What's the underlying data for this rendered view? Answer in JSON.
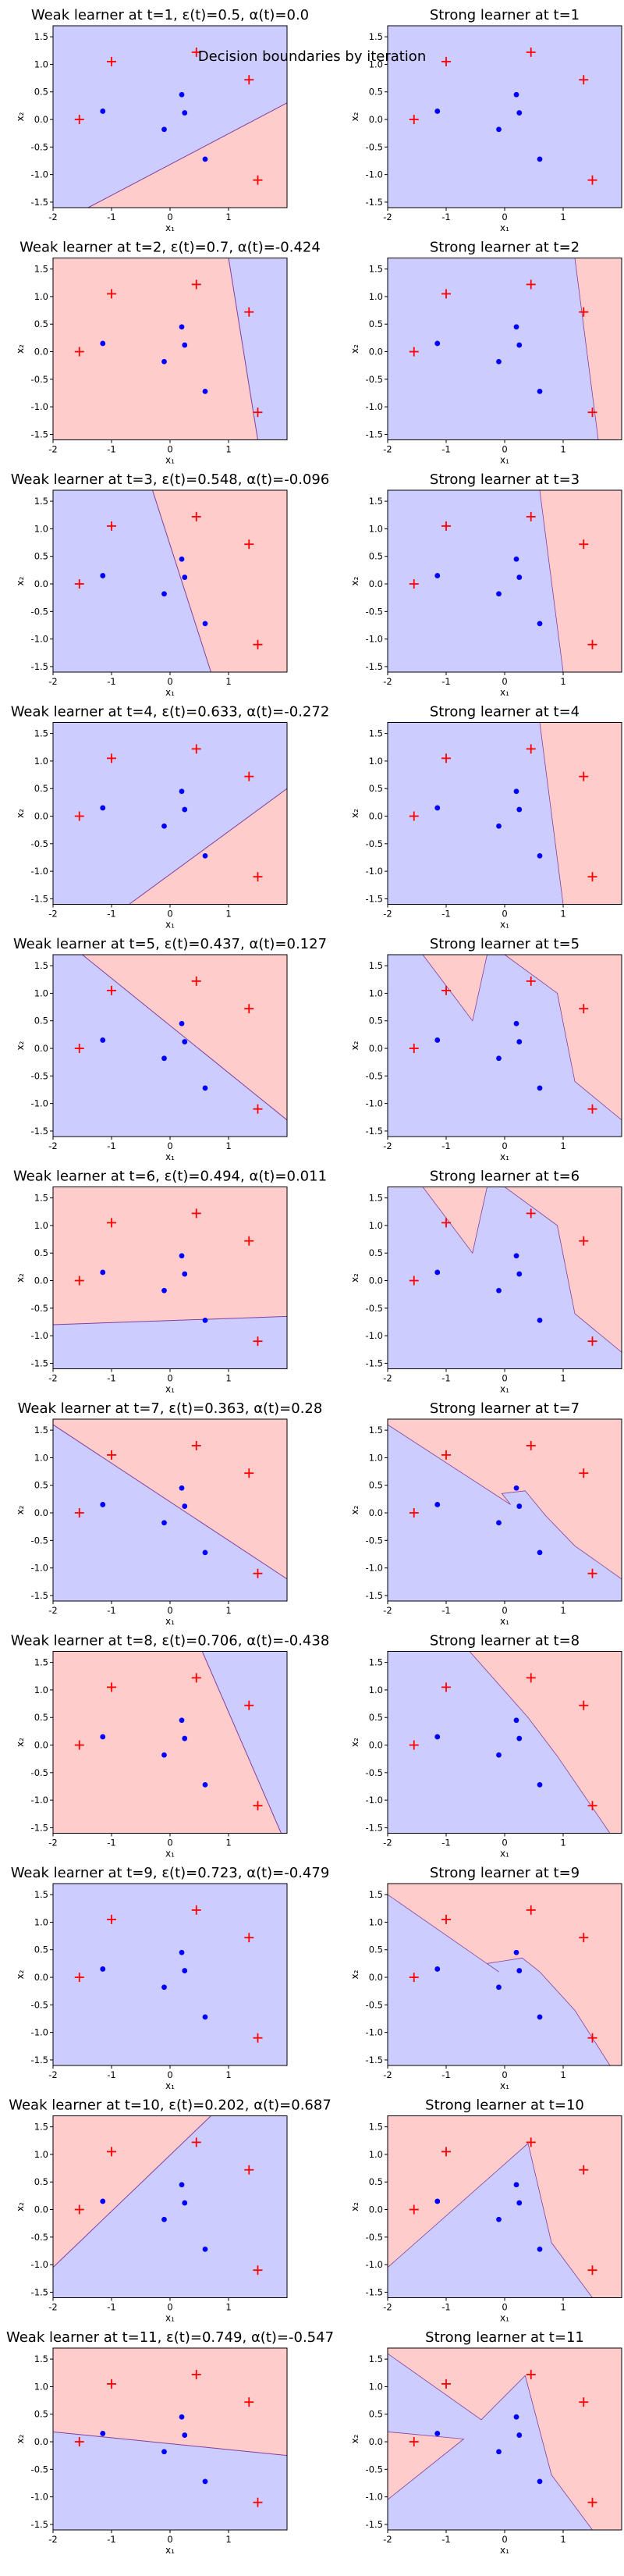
{
  "suptitle": "Decision boundaries by iteration",
  "xlabel": "x₁",
  "ylabel": "x₂",
  "xlim": [
    -2,
    2
  ],
  "ylim": [
    -1.6,
    1.7
  ],
  "x_ticks": [
    "-2",
    "-1",
    "0",
    "1"
  ],
  "y_ticks": [
    "1.5",
    "1.0",
    "0.5",
    "0.0",
    "-0.5",
    "-1.0",
    "-1.5"
  ],
  "colors": {
    "positive_region": "#ffcccc",
    "negative_region": "#ccccff",
    "positive_marker": "#ff0000",
    "negative_marker": "#0000ff",
    "boundary": "#8040a0"
  },
  "chart_data": {
    "type": "scatter",
    "points": {
      "positive": [
        [
          -1.55,
          0.0
        ],
        [
          -1.0,
          1.05
        ],
        [
          0.45,
          1.22
        ],
        [
          1.35,
          0.72
        ],
        [
          1.5,
          -1.1
        ]
      ],
      "negative": [
        [
          -1.15,
          0.15
        ],
        [
          -0.1,
          -0.18
        ],
        [
          0.2,
          0.45
        ],
        [
          0.25,
          0.12
        ],
        [
          0.6,
          -0.72
        ]
      ]
    },
    "weak_learners": [
      {
        "t": 1,
        "title": "Weak learner at t=1, ε(t)=0.5, α(t)=0.0",
        "boundary": [
          [
            -1.4,
            -1.6
          ],
          [
            2.0,
            0.3
          ]
        ],
        "positive_side": "lower-right"
      },
      {
        "t": 2,
        "title": "Weak learner at t=2, ε(t)=0.7, α(t)=-0.424",
        "boundary": [
          [
            1.0,
            1.7
          ],
          [
            1.5,
            -1.6
          ]
        ],
        "positive_side": "left"
      },
      {
        "t": 3,
        "title": "Weak learner at t=3, ε(t)=0.548, α(t)=-0.096",
        "boundary": [
          [
            -0.3,
            1.7
          ],
          [
            0.7,
            -1.6
          ]
        ],
        "positive_side": "right"
      },
      {
        "t": 4,
        "title": "Weak learner at t=4, ε(t)=0.633, α(t)=-0.272",
        "boundary": [
          [
            -0.7,
            -1.6
          ],
          [
            2.0,
            0.5
          ]
        ],
        "positive_side": "lower-right"
      },
      {
        "t": 5,
        "title": "Weak learner at t=5, ε(t)=0.437, α(t)=0.127",
        "boundary": [
          [
            -1.5,
            1.7
          ],
          [
            2.0,
            -1.3
          ]
        ],
        "positive_side": "upper-right"
      },
      {
        "t": 6,
        "title": "Weak learner at t=6, ε(t)=0.494, α(t)=0.011",
        "boundary": [
          [
            -2.0,
            -0.8
          ],
          [
            2.0,
            -0.65
          ]
        ],
        "positive_side": "upper"
      },
      {
        "t": 7,
        "title": "Weak learner at t=7, ε(t)=0.363, α(t)=0.28",
        "boundary": [
          [
            -2.0,
            1.6
          ],
          [
            2.0,
            -1.2
          ]
        ],
        "positive_side": "upper-right"
      },
      {
        "t": 8,
        "title": "Weak learner at t=8, ε(t)=0.706, α(t)=-0.438",
        "boundary": [
          [
            0.55,
            1.7
          ],
          [
            1.9,
            -1.6
          ]
        ],
        "positive_side": "left"
      },
      {
        "t": 9,
        "title": "Weak learner at t=9, ε(t)=0.723, α(t)=-0.479",
        "boundary": null,
        "positive_side": "none"
      },
      {
        "t": 10,
        "title": "Weak learner at t=10, ε(t)=0.202, α(t)=0.687",
        "boundary": [
          [
            -2.0,
            -1.05
          ],
          [
            0.7,
            1.7
          ]
        ],
        "positive_side": "upper-left"
      },
      {
        "t": 11,
        "title": "Weak learner at t=11, ε(t)=0.749, α(t)=-0.547",
        "boundary": [
          [
            -2.0,
            0.18
          ],
          [
            2.0,
            -0.25
          ]
        ],
        "positive_side": "upper"
      }
    ],
    "strong_learners": [
      {
        "t": 1,
        "title": "Strong learner at t=1",
        "regions": []
      },
      {
        "t": 2,
        "title": "Strong learner at t=2",
        "regions": [
          [
            [
              1.2,
              1.7
            ],
            [
              2.0,
              1.7
            ],
            [
              2.0,
              -1.6
            ],
            [
              1.6,
              -1.6
            ]
          ]
        ]
      },
      {
        "t": 3,
        "title": "Strong learner at t=3",
        "regions": [
          [
            [
              0.6,
              1.7
            ],
            [
              2.0,
              1.7
            ],
            [
              2.0,
              -1.6
            ],
            [
              1.0,
              -1.6
            ]
          ]
        ]
      },
      {
        "t": 4,
        "title": "Strong learner at t=4",
        "regions": [
          [
            [
              0.6,
              1.7
            ],
            [
              2.0,
              1.7
            ],
            [
              2.0,
              -1.6
            ],
            [
              1.0,
              -1.6
            ]
          ]
        ]
      },
      {
        "t": 5,
        "title": "Strong learner at t=5",
        "regions": [
          [
            [
              -1.4,
              1.7
            ],
            [
              -0.3,
              1.7
            ],
            [
              -0.55,
              0.5
            ]
          ],
          [
            [
              0.0,
              1.7
            ],
            [
              2.0,
              1.7
            ],
            [
              2.0,
              -1.3
            ],
            [
              1.2,
              -0.6
            ],
            [
              0.9,
              1.0
            ]
          ]
        ]
      },
      {
        "t": 6,
        "title": "Strong learner at t=6",
        "regions": [
          [
            [
              -1.4,
              1.7
            ],
            [
              -0.3,
              1.7
            ],
            [
              -0.55,
              0.5
            ]
          ],
          [
            [
              0.0,
              1.7
            ],
            [
              2.0,
              1.7
            ],
            [
              2.0,
              -1.3
            ],
            [
              1.2,
              -0.6
            ],
            [
              0.9,
              1.0
            ]
          ]
        ]
      },
      {
        "t": 7,
        "title": "Strong learner at t=7",
        "regions": [
          [
            [
              -2.0,
              1.6
            ],
            [
              -2.0,
              1.7
            ],
            [
              2.0,
              1.7
            ],
            [
              2.0,
              -1.2
            ],
            [
              1.2,
              -0.6
            ],
            [
              0.7,
              -0.05
            ],
            [
              0.35,
              0.4
            ],
            [
              -0.05,
              0.35
            ],
            [
              0.1,
              0.15
            ]
          ]
        ]
      },
      {
        "t": 8,
        "title": "Strong learner at t=8",
        "regions": [
          [
            [
              -0.6,
              1.7
            ],
            [
              2.0,
              1.7
            ],
            [
              2.0,
              -1.6
            ],
            [
              1.8,
              -1.6
            ],
            [
              0.9,
              -0.2
            ],
            [
              0.4,
              0.5
            ]
          ]
        ]
      },
      {
        "t": 9,
        "title": "Strong learner at t=9",
        "regions": [
          [
            [
              -2.0,
              1.5
            ],
            [
              -2.0,
              1.7
            ],
            [
              2.0,
              1.7
            ],
            [
              2.0,
              -1.6
            ],
            [
              1.8,
              -1.6
            ],
            [
              1.2,
              -0.6
            ],
            [
              0.6,
              0.1
            ],
            [
              0.3,
              0.35
            ],
            [
              -0.3,
              0.25
            ],
            [
              -0.1,
              0.1
            ]
          ]
        ]
      },
      {
        "t": 10,
        "title": "Strong learner at t=10",
        "regions": [
          [
            [
              -2.0,
              -1.05
            ],
            [
              -2.0,
              1.7
            ],
            [
              2.0,
              1.7
            ],
            [
              2.0,
              -1.6
            ],
            [
              1.5,
              -1.6
            ],
            [
              0.8,
              -0.6
            ],
            [
              0.4,
              1.2
            ]
          ]
        ]
      },
      {
        "t": 11,
        "title": "Strong learner at t=11",
        "regions": [
          [
            [
              -2.0,
              1.6
            ],
            [
              -2.0,
              1.7
            ],
            [
              2.0,
              1.7
            ],
            [
              2.0,
              -1.6
            ],
            [
              1.5,
              -1.6
            ],
            [
              0.8,
              -0.6
            ],
            [
              0.35,
              1.2
            ],
            [
              -0.4,
              0.4
            ]
          ],
          [
            [
              -2.0,
              -1.05
            ],
            [
              -2.0,
              0.18
            ],
            [
              -0.7,
              0.05
            ]
          ]
        ]
      }
    ]
  }
}
